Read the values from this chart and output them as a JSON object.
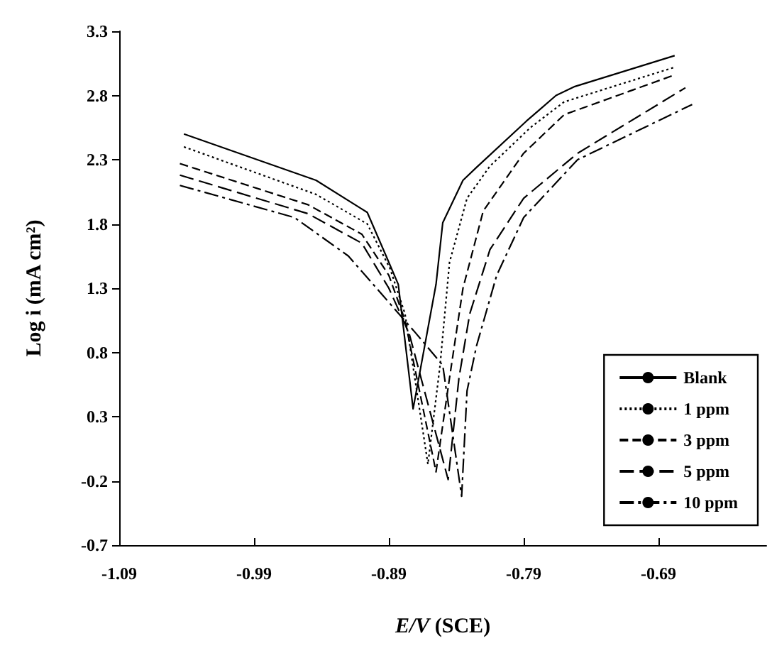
{
  "chart_data": {
    "type": "line",
    "xlabel": "E/V (SCE)",
    "ylabel": "Log i (mA cm²)",
    "xlim": [
      -1.09,
      -0.61
    ],
    "xticks": [
      -1.09,
      -0.99,
      -0.89,
      -0.79,
      -0.69
    ],
    "ylim": [
      -0.7,
      3.3
    ],
    "yticks": [
      -0.7,
      -0.2,
      0.3,
      0.8,
      1.3,
      1.8,
      2.3,
      2.8,
      3.3
    ],
    "legend": "bottom right",
    "grid": false,
    "marker": "none",
    "series": [
      {
        "name": "Blank",
        "color": "#000000",
        "line_style": "solid",
        "x": [
          -1.042,
          -0.944,
          -0.906,
          -0.892,
          -0.883,
          -0.872,
          -0.855,
          -0.85,
          -0.835,
          -0.825,
          -0.788,
          -0.766,
          -0.752,
          -0.678
        ],
        "values": [
          2.5,
          2.14,
          1.89,
          1.55,
          1.33,
          0.36,
          1.33,
          1.81,
          2.14,
          2.24,
          2.6,
          2.8,
          2.87,
          3.11
        ]
      },
      {
        "name": "1 ppm",
        "color": "#000000",
        "line_style": "dotted",
        "x": [
          -1.042,
          -0.944,
          -0.906,
          -0.889,
          -0.878,
          -0.861,
          -0.852,
          -0.845,
          -0.832,
          -0.815,
          -0.785,
          -0.76,
          -0.678
        ],
        "values": [
          2.4,
          2.03,
          1.8,
          1.45,
          1.1,
          -0.07,
          0.7,
          1.5,
          2.0,
          2.25,
          2.55,
          2.75,
          3.02
        ]
      },
      {
        "name": "3 ppm",
        "color": "#000000",
        "line_style": "dashed",
        "x": [
          -1.045,
          -0.95,
          -0.91,
          -0.89,
          -0.878,
          -0.855,
          -0.845,
          -0.835,
          -0.82,
          -0.79,
          -0.76,
          -0.678
        ],
        "values": [
          2.27,
          1.95,
          1.72,
          1.4,
          1.05,
          -0.13,
          0.6,
          1.3,
          1.9,
          2.35,
          2.65,
          2.96
        ]
      },
      {
        "name": "5 ppm",
        "color": "#000000",
        "line_style": "dashed",
        "x": [
          -1.045,
          -0.95,
          -0.91,
          -0.89,
          -0.875,
          -0.846,
          -0.838,
          -0.83,
          -0.815,
          -0.79,
          -0.75,
          -0.67
        ],
        "values": [
          2.18,
          1.88,
          1.65,
          1.3,
          0.95,
          -0.19,
          0.6,
          1.1,
          1.6,
          2.0,
          2.35,
          2.86
        ]
      },
      {
        "name": "10 ppm",
        "color": "#000000",
        "line_style": "dashed",
        "x": [
          -1.045,
          -0.96,
          -0.92,
          -0.895,
          -0.87,
          -0.85,
          -0.836,
          -0.832,
          -0.825,
          -0.81,
          -0.79,
          -0.75,
          -0.665
        ],
        "values": [
          2.1,
          1.85,
          1.55,
          1.25,
          0.95,
          0.7,
          -0.32,
          0.5,
          0.85,
          1.4,
          1.85,
          2.3,
          2.73
        ]
      }
    ]
  }
}
